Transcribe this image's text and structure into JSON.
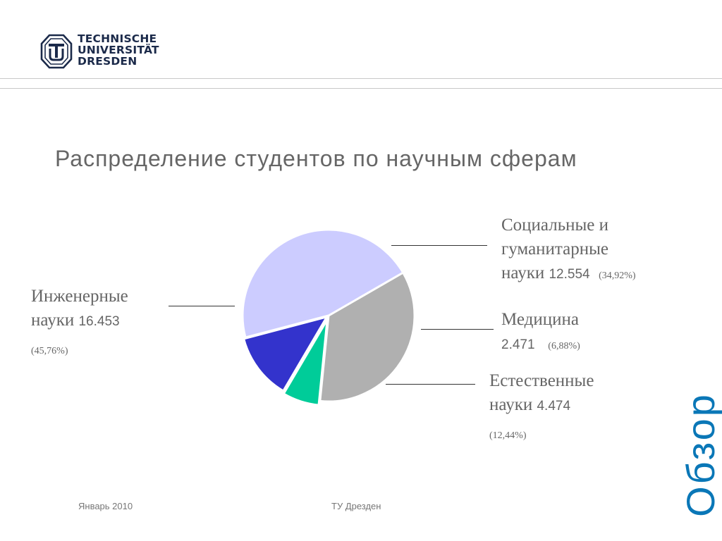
{
  "logo": {
    "lines": [
      "TECHNISCHE",
      "UNIVERSITÄT",
      "DRESDEN"
    ]
  },
  "slide": {
    "title": "Распределение студентов по научным сферам",
    "section": "Обзор"
  },
  "labels": {
    "social": {
      "line1": "Социальные и",
      "line2": "гуманитарные",
      "line3": "науки",
      "value": "12.554",
      "pct": "(34,92%)"
    },
    "medicine": {
      "line1": "Медицина",
      "value": "2.471",
      "pct": "(6,88%)"
    },
    "natural": {
      "line1": "Естественные",
      "line2": "науки",
      "value": "4.474",
      "pct": "(12,44%)"
    },
    "engineering": {
      "line1": "Инженерные",
      "line2": "науки",
      "value": "16.453",
      "pct": "(45,76%)"
    }
  },
  "footer": {
    "date": "Январь  2010",
    "org": "ТУ Дрезден"
  },
  "chart_data": {
    "type": "pie",
    "title": "Распределение студентов по научным сферам",
    "slices": [
      {
        "name": "Социальные и гуманитарные науки",
        "value": 12554,
        "percent": 34.92,
        "color": "#b0b0b0"
      },
      {
        "name": "Медицина",
        "value": 2471,
        "percent": 6.88,
        "color": "#00cc99"
      },
      {
        "name": "Естественные науки",
        "value": 4474,
        "percent": 12.44,
        "color": "#3333cc"
      },
      {
        "name": "Инженерные науки",
        "value": 16453,
        "percent": 45.76,
        "color": "#ccccff"
      }
    ],
    "start_angle_deg": -30,
    "direction": "clockwise"
  },
  "colors": {
    "accent": "#0a77b7",
    "logo": "#1b2a4a"
  }
}
